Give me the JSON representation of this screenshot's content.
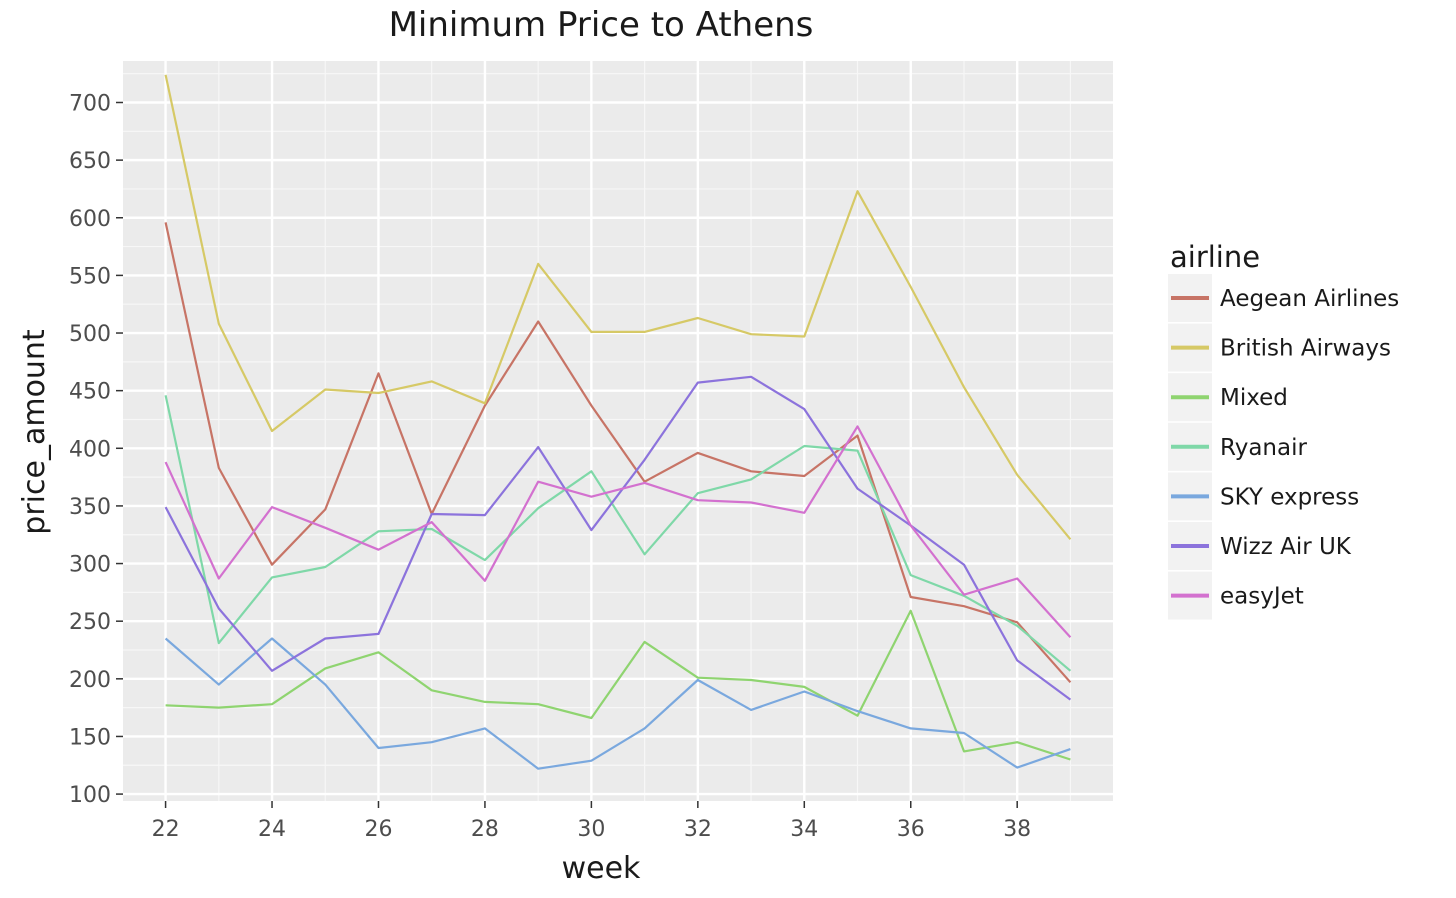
{
  "chart_data": {
    "type": "line",
    "title": "Minimum Price to Athens",
    "xlabel": "week",
    "ylabel": "price_amount",
    "xlim": [
      21.2,
      39.8
    ],
    "ylim": [
      94,
      736
    ],
    "x_ticks": [
      22,
      24,
      26,
      28,
      30,
      32,
      34,
      36,
      38
    ],
    "y_ticks": [
      100,
      150,
      200,
      250,
      300,
      350,
      400,
      450,
      500,
      550,
      600,
      650,
      700
    ],
    "grid": true,
    "legend": {
      "title": "airline",
      "placement": "right"
    },
    "x": [
      22,
      23,
      24,
      25,
      26,
      27,
      28,
      29,
      30,
      31,
      32,
      33,
      34,
      35,
      36,
      37,
      38,
      39
    ],
    "series": [
      {
        "name": "Aegean Airlines",
        "color": "#C77466",
        "values": [
          596,
          383,
          299,
          347,
          465,
          343,
          437,
          510,
          437,
          371,
          396,
          380,
          376,
          411,
          271,
          263,
          249,
          197
        ]
      },
      {
        "name": "British Airways",
        "color": "#D6C966",
        "values": [
          724,
          508,
          415,
          451,
          448,
          458,
          439,
          560,
          501,
          501,
          513,
          499,
          497,
          623,
          540,
          453,
          377,
          321
        ]
      },
      {
        "name": "Mixed",
        "color": "#8FD470",
        "values": [
          177,
          175,
          178,
          209,
          223,
          190,
          180,
          178,
          166,
          232,
          201,
          199,
          193,
          168,
          259,
          137,
          145,
          130
        ]
      },
      {
        "name": "Ryanair",
        "color": "#7FD8A8",
        "values": [
          446,
          231,
          288,
          297,
          328,
          330,
          303,
          348,
          380,
          308,
          361,
          373,
          402,
          398,
          290,
          272,
          246,
          207
        ]
      },
      {
        "name": "SKY express",
        "color": "#7AA8DE",
        "values": [
          235,
          195,
          235,
          195,
          140,
          145,
          157,
          122,
          129,
          157,
          199,
          173,
          189,
          172,
          157,
          153,
          123,
          139
        ]
      },
      {
        "name": "Wizz Air UK",
        "color": "#8C73DC",
        "values": [
          349,
          261,
          207,
          235,
          239,
          343,
          342,
          401,
          329,
          390,
          457,
          462,
          434,
          365,
          333,
          299,
          216,
          182
        ]
      },
      {
        "name": "easyJet",
        "color": "#D371CF",
        "values": [
          388,
          287,
          349,
          331,
          312,
          336,
          285,
          371,
          358,
          370,
          355,
          353,
          344,
          419,
          333,
          273,
          287,
          236
        ]
      }
    ]
  }
}
